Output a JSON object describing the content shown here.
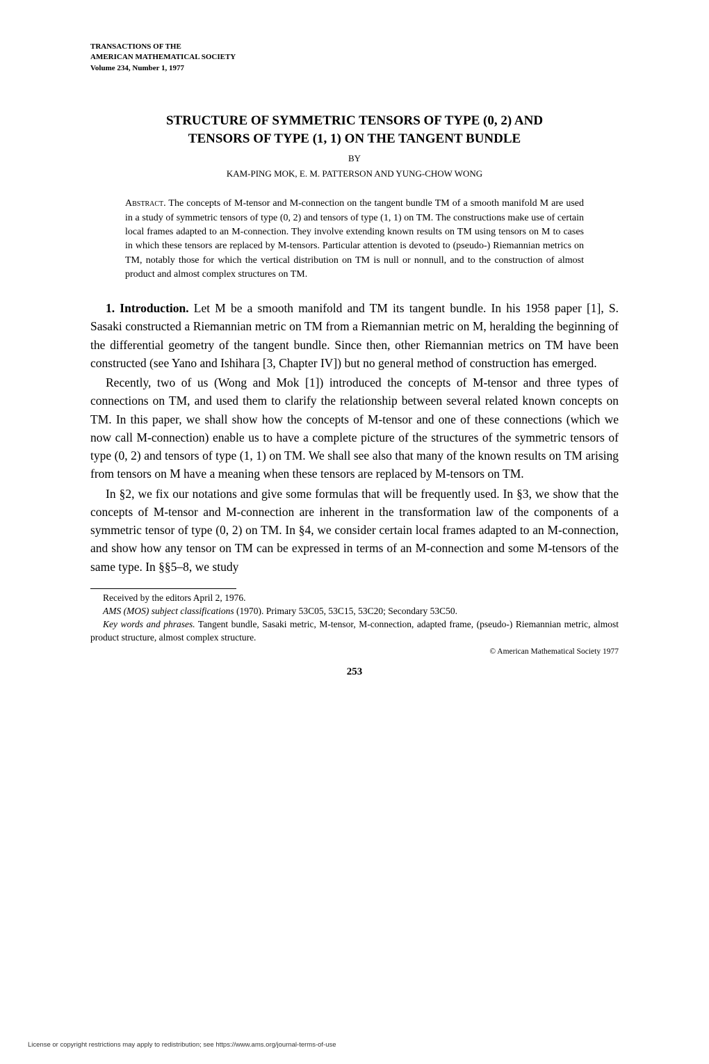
{
  "journal": {
    "line1": "TRANSACTIONS OF THE",
    "line2": "AMERICAN MATHEMATICAL SOCIETY",
    "line3": "Volume 234, Number 1, 1977"
  },
  "title": {
    "line1": "STRUCTURE OF SYMMETRIC TENSORS OF TYPE (0, 2) AND",
    "line2": "TENSORS OF TYPE (1, 1) ON THE TANGENT BUNDLE"
  },
  "by": "BY",
  "authors": "KAM-PING MOK, E. M. PATTERSON AND YUNG-CHOW WONG",
  "abstract": {
    "label": "Abstract.",
    "text": " The concepts of M-tensor and M-connection on the tangent bundle TM of a smooth manifold M are used in a study of symmetric tensors of type (0, 2) and tensors of type (1, 1) on TM. The constructions make use of certain local frames adapted to an M-connection. They involve extending known results on TM using tensors on M to cases in which these tensors are replaced by M-tensors. Particular attention is devoted to (pseudo-) Riemannian metrics on TM, notably those for which the vertical distribution on TM is null or nonnull, and to the construction of almost product and almost complex structures on TM."
  },
  "body": {
    "p1_a": "1. Introduction.",
    "p1_b": " Let M be a smooth manifold and TM its tangent bundle. In his 1958 paper [1], S. Sasaki constructed a Riemannian metric on TM from a Riemannian metric on M, heralding the beginning of the differential geometry of the tangent bundle. Since then, other Riemannian metrics on TM have been constructed (see Yano and Ishihara [3, Chapter IV]) but no general method of construction has emerged.",
    "p2": "Recently, two of us (Wong and Mok [1]) introduced the concepts of M-tensor and three types of connections on TM, and used them to clarify the relationship between several related known concepts on TM. In this paper, we shall show how the concepts of M-tensor and one of these connections (which we now call M-connection) enable us to have a complete picture of the structures of the symmetric tensors of type (0, 2) and tensors of type (1, 1) on TM. We shall see also that many of the known results on TM arising from tensors on M have a meaning when these tensors are replaced by M-tensors on TM.",
    "p3": "In §2, we fix our notations and give some formulas that will be frequently used. In §3, we show that the concepts of M-tensor and M-connection are inherent in the transformation law of the components of a symmetric tensor of type (0, 2) on TM. In §4, we consider certain local frames adapted to an M-connection, and show how any tensor on TM can be expressed in terms of an M-connection and some M-tensors of the same type. In §§5–8, we study"
  },
  "footnotes": {
    "received": "Received by the editors April 2, 1976.",
    "ams_a": "AMS (MOS) subject classifications",
    "ams_b": " (1970). Primary 53C05, 53C15, 53C20; Secondary 53C50.",
    "key_a": "Key words and phrases.",
    "key_b": " Tangent bundle, Sasaki metric, M-tensor, M-connection, adapted frame, (pseudo-) Riemannian metric, almost product structure, almost complex structure."
  },
  "copyright": "© American Mathematical Society 1977",
  "page_number": "253",
  "license": "License or copyright restrictions may apply to redistribution; see https://www.ams.org/journal-terms-of-use"
}
